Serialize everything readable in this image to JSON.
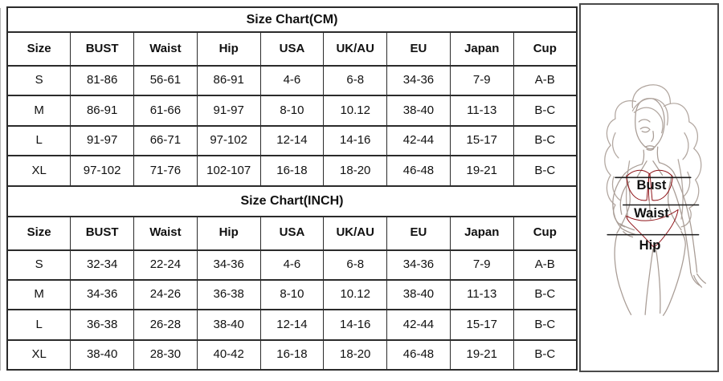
{
  "tables": [
    {
      "title": "Size Chart(CM)",
      "columns": [
        "Size",
        "BUST",
        "Waist",
        "Hip",
        "USA",
        "UK/AU",
        "EU",
        "Japan",
        "Cup"
      ],
      "rows": [
        [
          "S",
          "81-86",
          "56-61",
          "86-91",
          "4-6",
          "6-8",
          "34-36",
          "7-9",
          "A-B"
        ],
        [
          "M",
          "86-91",
          "61-66",
          "91-97",
          "8-10",
          "10.12",
          "38-40",
          "11-13",
          "B-C"
        ],
        [
          "L",
          "91-97",
          "66-71",
          "97-102",
          "12-14",
          "14-16",
          "42-44",
          "15-17",
          "B-C"
        ],
        [
          "XL",
          "97-102",
          "71-76",
          "102-107",
          "16-18",
          "18-20",
          "46-48",
          "19-21",
          "B-C"
        ]
      ]
    },
    {
      "title": "Size Chart(INCH)",
      "columns": [
        "Size",
        "BUST",
        "Waist",
        "Hip",
        "USA",
        "UK/AU",
        "EU",
        "Japan",
        "Cup"
      ],
      "rows": [
        [
          "S",
          "32-34",
          "22-24",
          "34-36",
          "4-6",
          "6-8",
          "34-36",
          "7-9",
          "A-B"
        ],
        [
          "M",
          "34-36",
          "24-26",
          "36-38",
          "8-10",
          "10.12",
          "38-40",
          "11-13",
          "B-C"
        ],
        [
          "L",
          "36-38",
          "26-28",
          "38-40",
          "12-14",
          "14-16",
          "42-44",
          "15-17",
          "B-C"
        ],
        [
          "XL",
          "38-40",
          "28-30",
          "40-42",
          "16-18",
          "18-20",
          "46-48",
          "19-21",
          "B-C"
        ]
      ]
    }
  ],
  "figure": {
    "labels": {
      "bust": "Bust",
      "waist": "Waist",
      "hip": "Hip"
    },
    "bikini_color": "#b0151b",
    "outline_color": "#a99d96",
    "measure_line_color": "#1a1a1a"
  }
}
